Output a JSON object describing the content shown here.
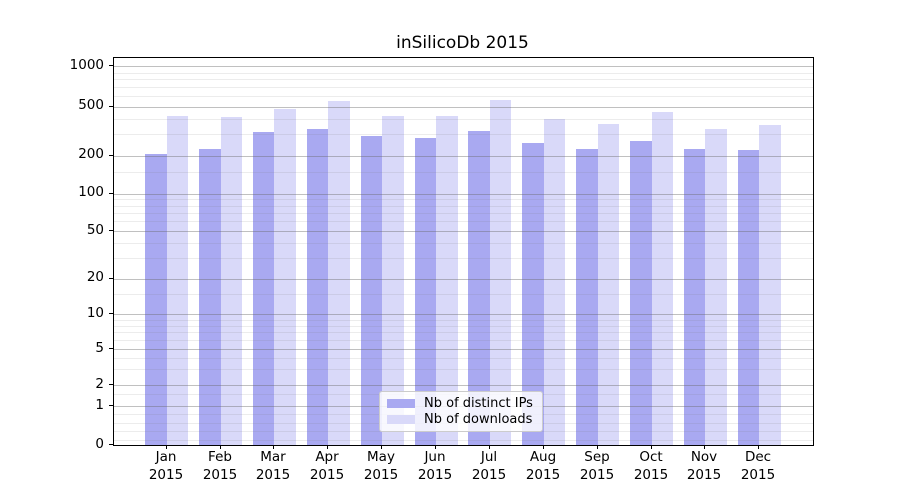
{
  "chart_data": {
    "type": "bar",
    "title": "inSilicoDb 2015",
    "categories": [
      "Jan 2015",
      "Feb 2015",
      "Mar 2015",
      "Apr 2015",
      "May 2015",
      "Jun 2015",
      "Jul 2015",
      "Aug 2015",
      "Sep 2015",
      "Oct 2015",
      "Nov 2015",
      "Dec 2015"
    ],
    "series": [
      {
        "name": "Nb of distinct IPs",
        "color": "#a9a9f1",
        "values": [
          210,
          230,
          315,
          335,
          295,
          285,
          320,
          260,
          230,
          265,
          230,
          225
        ]
      },
      {
        "name": "Nb of downloads",
        "color": "#d9d9f9",
        "values": [
          425,
          415,
          485,
          565,
          425,
          425,
          570,
          400,
          365,
          460,
          335,
          360
        ]
      }
    ],
    "xlabel": "",
    "ylabel": "",
    "yscale": "log-like",
    "yticks": [
      0,
      1,
      2,
      5,
      10,
      20,
      50,
      100,
      200,
      500,
      1000
    ],
    "ylim": [
      0,
      1300
    ],
    "grid": true,
    "legend_position": "bottom-center"
  }
}
